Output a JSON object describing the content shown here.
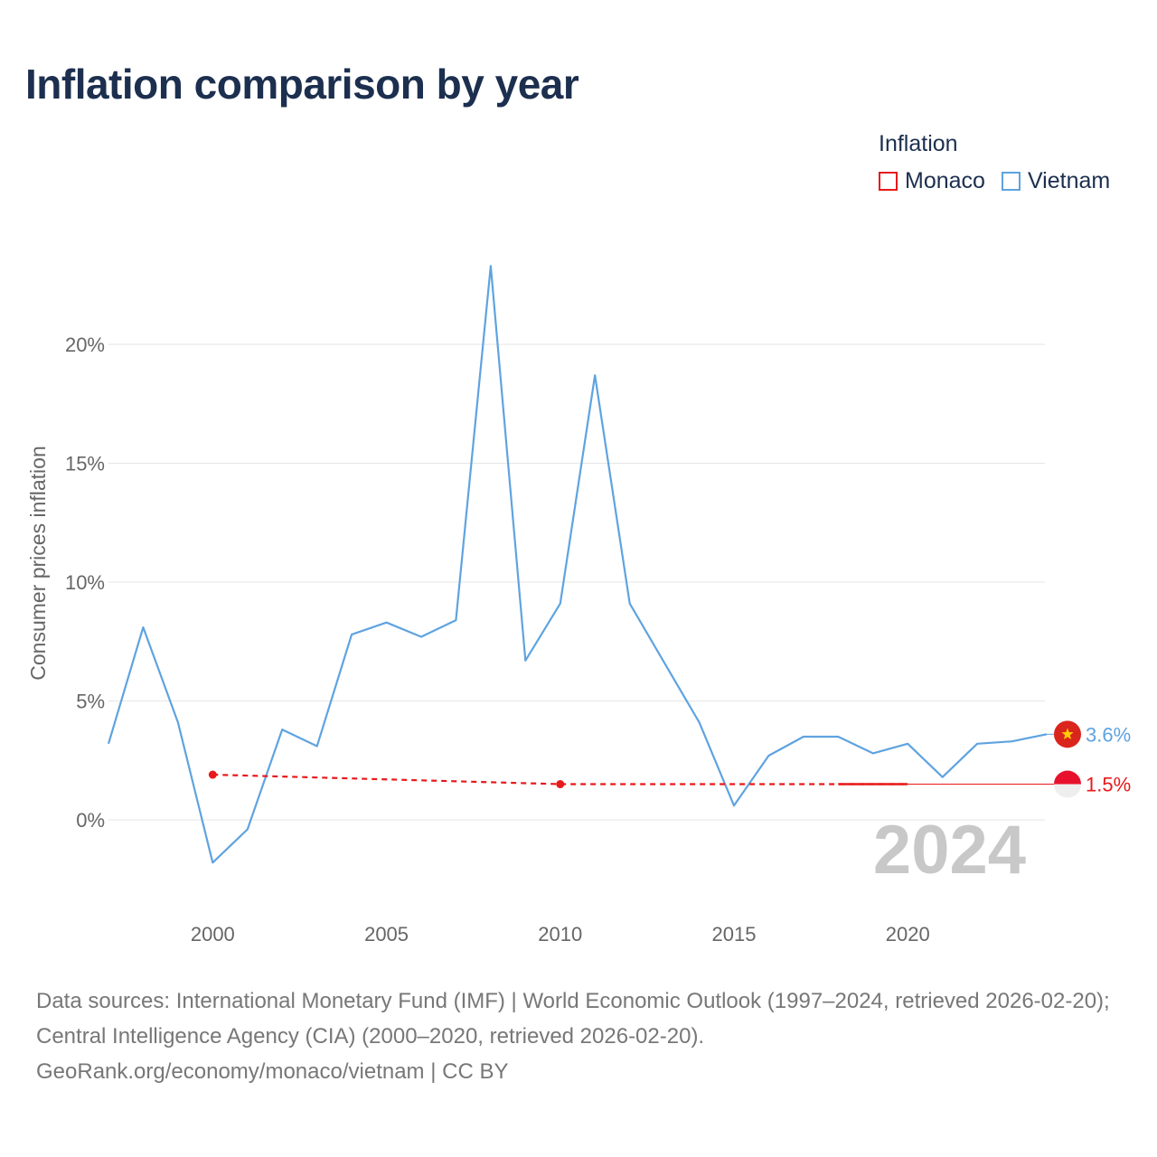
{
  "title": "Inflation comparison by year",
  "legend": {
    "title": "Inflation",
    "items": [
      {
        "name": "Monaco",
        "color": "#e8191b"
      },
      {
        "name": "Vietnam",
        "color": "#5fa3e0"
      }
    ]
  },
  "chart_data": {
    "type": "line",
    "title": "Inflation comparison by year",
    "ylabel": "Consumer prices inflation",
    "xlabel": "",
    "x_ticks": [
      "2000",
      "2005",
      "2010",
      "2015",
      "2020"
    ],
    "x_tick_values": [
      2000,
      2005,
      2010,
      2015,
      2020
    ],
    "y_ticks": [
      "0%",
      "5%",
      "10%",
      "15%",
      "20%"
    ],
    "y_tick_values": [
      0,
      5,
      10,
      15,
      20
    ],
    "xlim": [
      1997,
      2024
    ],
    "ylim": [
      -2.5,
      23.5
    ],
    "current_year_label": "2024",
    "series": [
      {
        "name": "Vietnam",
        "color": "#5fa3e0",
        "end_label": "3.6%",
        "x": [
          1997,
          1998,
          1999,
          2000,
          2001,
          2002,
          2003,
          2004,
          2005,
          2006,
          2007,
          2008,
          2009,
          2010,
          2011,
          2012,
          2013,
          2014,
          2015,
          2016,
          2017,
          2018,
          2019,
          2020,
          2021,
          2022,
          2023,
          2024
        ],
        "values": [
          3.2,
          8.1,
          4.1,
          -1.8,
          -0.4,
          3.8,
          3.1,
          7.8,
          8.3,
          7.7,
          8.4,
          23.3,
          6.7,
          9.1,
          18.7,
          9.1,
          6.6,
          4.1,
          0.6,
          2.7,
          3.5,
          3.5,
          2.8,
          3.2,
          1.8,
          3.2,
          3.3,
          3.6
        ]
      },
      {
        "name": "Monaco",
        "color": "#e8191b",
        "end_label": "1.5%",
        "x": [
          2000,
          2010,
          2020
        ],
        "values": [
          1.9,
          1.5,
          1.5
        ],
        "dashed": true
      }
    ]
  },
  "footer": {
    "sources": "Data sources: International Monetary Fund (IMF) | World Economic Outlook (1997–2024, retrieved 2026-02-20); Central Intelligence Agency (CIA) (2000–2020, retrieved 2026-02-20).",
    "credit": "GeoRank.org/economy/monaco/vietnam | CC BY"
  }
}
